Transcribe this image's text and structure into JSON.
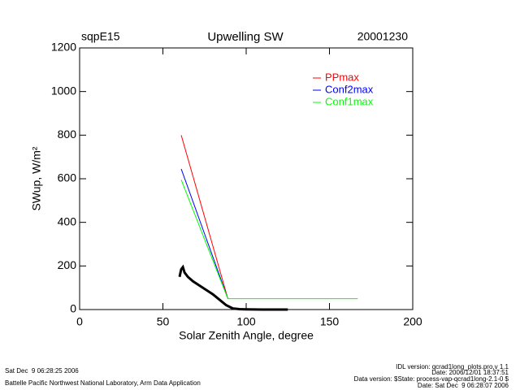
{
  "chart_data": {
    "type": "line",
    "title": "Upwelling SW",
    "left_title": "sqpE15",
    "right_title": "20001230",
    "x_label": "Solar Zenith Angle, degree",
    "y_label": "SWup, W/m²",
    "xlim": [
      0,
      200
    ],
    "xticks": [
      0,
      50,
      100,
      150,
      200
    ],
    "ylim": [
      0,
      1200
    ],
    "yticks": [
      0,
      200,
      400,
      600,
      800,
      1000,
      1200
    ],
    "series": [
      {
        "name": "PPmax",
        "color": "#ff0000",
        "x": [
          61,
          89
        ],
        "values": [
          800,
          50
        ]
      },
      {
        "name": "Conf2max",
        "color": "#0000ff",
        "x": [
          61,
          89
        ],
        "values": [
          645,
          50
        ]
      },
      {
        "name": "Conf1max",
        "color": "#00ff00",
        "x": [
          61,
          89,
          167
        ],
        "values": [
          595,
          50,
          50
        ]
      },
      {
        "color": "#000000",
        "x": [
          60,
          61,
          62,
          63,
          65,
          68,
          72,
          76,
          80,
          84,
          88,
          92,
          96,
          100,
          110,
          125
        ],
        "values": [
          150,
          185,
          195,
          170,
          150,
          130,
          110,
          90,
          70,
          45,
          20,
          5,
          2,
          1,
          0,
          0
        ]
      }
    ]
  },
  "footer": {
    "left": [
      "Sat Dec  9 06:28:25 2006",
      "Battelle Pacific Northwest National Laboratory, Arm Data Application"
    ],
    "right": [
      "IDL version: qcrad1long_plots.pro,v 1.1",
      "Date: 2006/12/01 18:37:51",
      "Data version: $State: process-vap-qcrad1long-2.1-0 $",
      "Date: Sat Dec  9 06:28:07 2006"
    ]
  }
}
